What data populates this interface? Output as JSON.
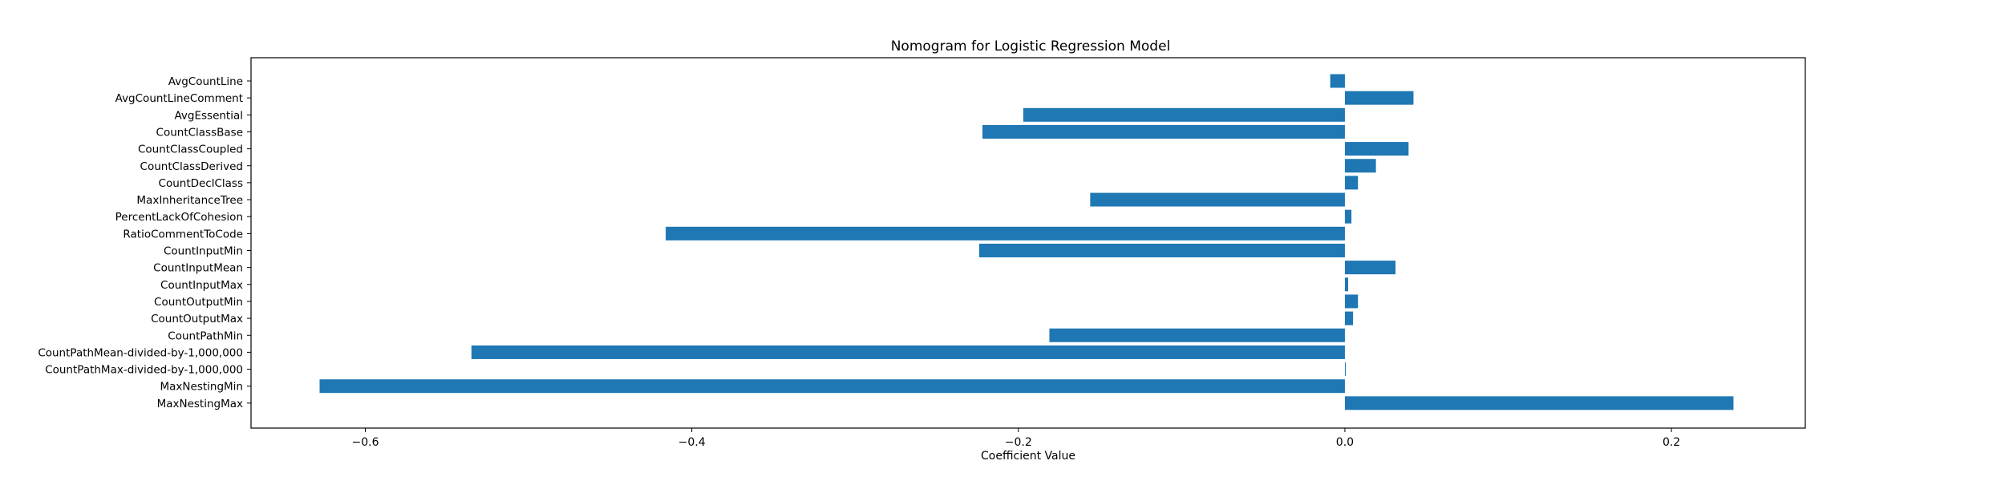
{
  "chart_data": {
    "type": "bar",
    "orientation": "horizontal",
    "title": "Nomogram for Logistic Regression Model",
    "xlabel": "Coefficient Value",
    "ylabel": "",
    "xlim": [
      -0.67,
      0.282
    ],
    "xticks": [
      -0.6,
      -0.4,
      -0.2,
      0.0,
      0.2
    ],
    "xtick_labels": [
      "−0.6",
      "−0.4",
      "−0.2",
      "0.0",
      "0.2"
    ],
    "grid": false,
    "bar_color": "#1f77b4",
    "categories": [
      "AvgCountLine",
      "AvgCountLineComment",
      "AvgEssential",
      "CountClassBase",
      "CountClassCoupled",
      "CountClassDerived",
      "CountDeclClass",
      "MaxInheritanceTree",
      "PercentLackOfCohesion",
      "RatioCommentToCode",
      "CountInputMin",
      "CountInputMean",
      "CountInputMax",
      "CountOutputMin",
      "CountOutputMax",
      "CountPathMin",
      "CountPathMean-divided-by-1,000,000",
      "CountPathMax-divided-by-1,000,000",
      "MaxNestingMin",
      "MaxNestingMax"
    ],
    "values": [
      -0.009,
      0.042,
      -0.197,
      -0.222,
      0.039,
      0.019,
      0.008,
      -0.156,
      0.004,
      -0.416,
      -0.224,
      0.031,
      0.002,
      0.008,
      0.005,
      -0.181,
      -0.535,
      0.0005,
      -0.628,
      0.238
    ]
  }
}
